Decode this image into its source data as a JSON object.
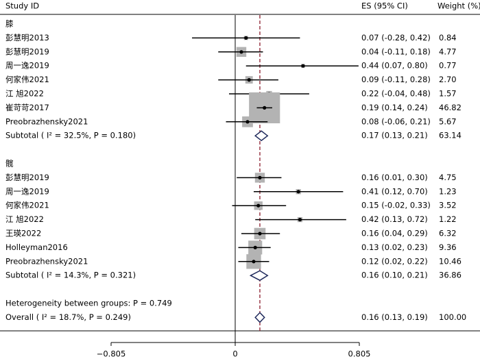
{
  "chart_data": {
    "type": "forest",
    "headers": {
      "study": "Study ID",
      "es": "ES (95% CI)",
      "weight": "Weight (%)"
    },
    "xlim": [
      -0.805,
      0.805
    ],
    "xticks": [
      {
        "value": -0.805,
        "label": "−0.805"
      },
      0,
      0.805
    ],
    "ref_color": "#8b1a2b",
    "square_color": "#b3b3b3",
    "diamond_color": "#1f2a5c",
    "groups": [
      {
        "name": "膝",
        "studies": [
          {
            "label": "彭慧明2013",
            "es": 0.07,
            "lo": -0.28,
            "hi": 0.42,
            "es_label": "0.07 (-0.28, 0.42)",
            "weight": 0.84
          },
          {
            "label": "彭慧明2019",
            "es": 0.04,
            "lo": -0.11,
            "hi": 0.18,
            "es_label": "0.04 (-0.11, 0.18)",
            "weight": 4.77
          },
          {
            "label": "周一逸2019",
            "es": 0.44,
            "lo": 0.07,
            "hi": 0.8,
            "es_label": "0.44 (0.07, 0.80)",
            "weight": 0.77
          },
          {
            "label": "何家伟2021",
            "es": 0.09,
            "lo": -0.11,
            "hi": 0.28,
            "es_label": "0.09 (-0.11, 0.28)",
            "weight": {
              "value": 2.7,
              "label": "2.70"
            }
          },
          {
            "label": "江 旭2022",
            "es": 0.22,
            "lo": -0.04,
            "hi": 0.48,
            "es_label": "0.22 (-0.04, 0.48)",
            "weight": 1.57
          },
          {
            "label": "崔苛苛2017",
            "es": 0.19,
            "lo": 0.14,
            "hi": 0.24,
            "es_label": "0.19 (0.14, 0.24)",
            "weight": 46.82
          },
          {
            "label": "Preobrazhensky2021",
            "es": 0.08,
            "lo": -0.06,
            "hi": 0.21,
            "es_label": "0.08 (-0.06, 0.21)",
            "weight": 5.67
          }
        ],
        "subtotal": {
          "label": "Subtotal  ( I² = 32.5%, P = 0.180)",
          "es": 0.17,
          "lo": 0.13,
          "hi": 0.21,
          "es_label": "0.17 (0.13, 0.21)",
          "weight": 63.14
        }
      },
      {
        "name": "髋",
        "studies": [
          {
            "label": "彭慧明2019",
            "es": 0.16,
            "lo": 0.01,
            "hi": 0.3,
            "es_label": "0.16 (0.01, 0.30)",
            "weight": 4.75
          },
          {
            "label": "周一逸2019",
            "es": 0.41,
            "lo": 0.12,
            "hi": 0.7,
            "es_label": "0.41 (0.12, 0.70)",
            "weight": 1.23
          },
          {
            "label": "何家伟2021",
            "es": 0.15,
            "lo": -0.02,
            "hi": 0.33,
            "es_label": "0.15 (-0.02, 0.33)",
            "weight": 3.52
          },
          {
            "label": "江 旭2022",
            "es": 0.42,
            "lo": 0.13,
            "hi": 0.72,
            "es_label": "0.42 (0.13, 0.72)",
            "weight": 1.22
          },
          {
            "label": "王瑛2022",
            "es": 0.16,
            "lo": 0.04,
            "hi": 0.29,
            "es_label": "0.16 (0.04, 0.29)",
            "weight": 6.32
          },
          {
            "label": "Holleyman2016",
            "es": 0.13,
            "lo": 0.02,
            "hi": 0.23,
            "es_label": "0.13 (0.02, 0.23)",
            "weight": 9.36
          },
          {
            "label": "Preobrazhensky2021",
            "es": 0.12,
            "lo": 0.02,
            "hi": 0.22,
            "es_label": "0.12 (0.02, 0.22)",
            "weight": 10.46
          }
        ],
        "subtotal": {
          "label": "Subtotal  ( I² = 14.3%, P = 0.321)",
          "es": 0.16,
          "lo": 0.1,
          "hi": 0.21,
          "es_label": "0.16 (0.10, 0.21)",
          "weight": 36.86
        }
      }
    ],
    "heterogeneity": "Heterogeneity between groups: P = 0.749",
    "overall": {
      "label": "Overall  ( I² = 18.7%, P = 0.249)",
      "es": 0.16,
      "lo": 0.13,
      "hi": 0.19,
      "es_label": "0.16 (0.13, 0.19)",
      "weight": {
        "value": 100,
        "label": "100.00"
      }
    }
  }
}
